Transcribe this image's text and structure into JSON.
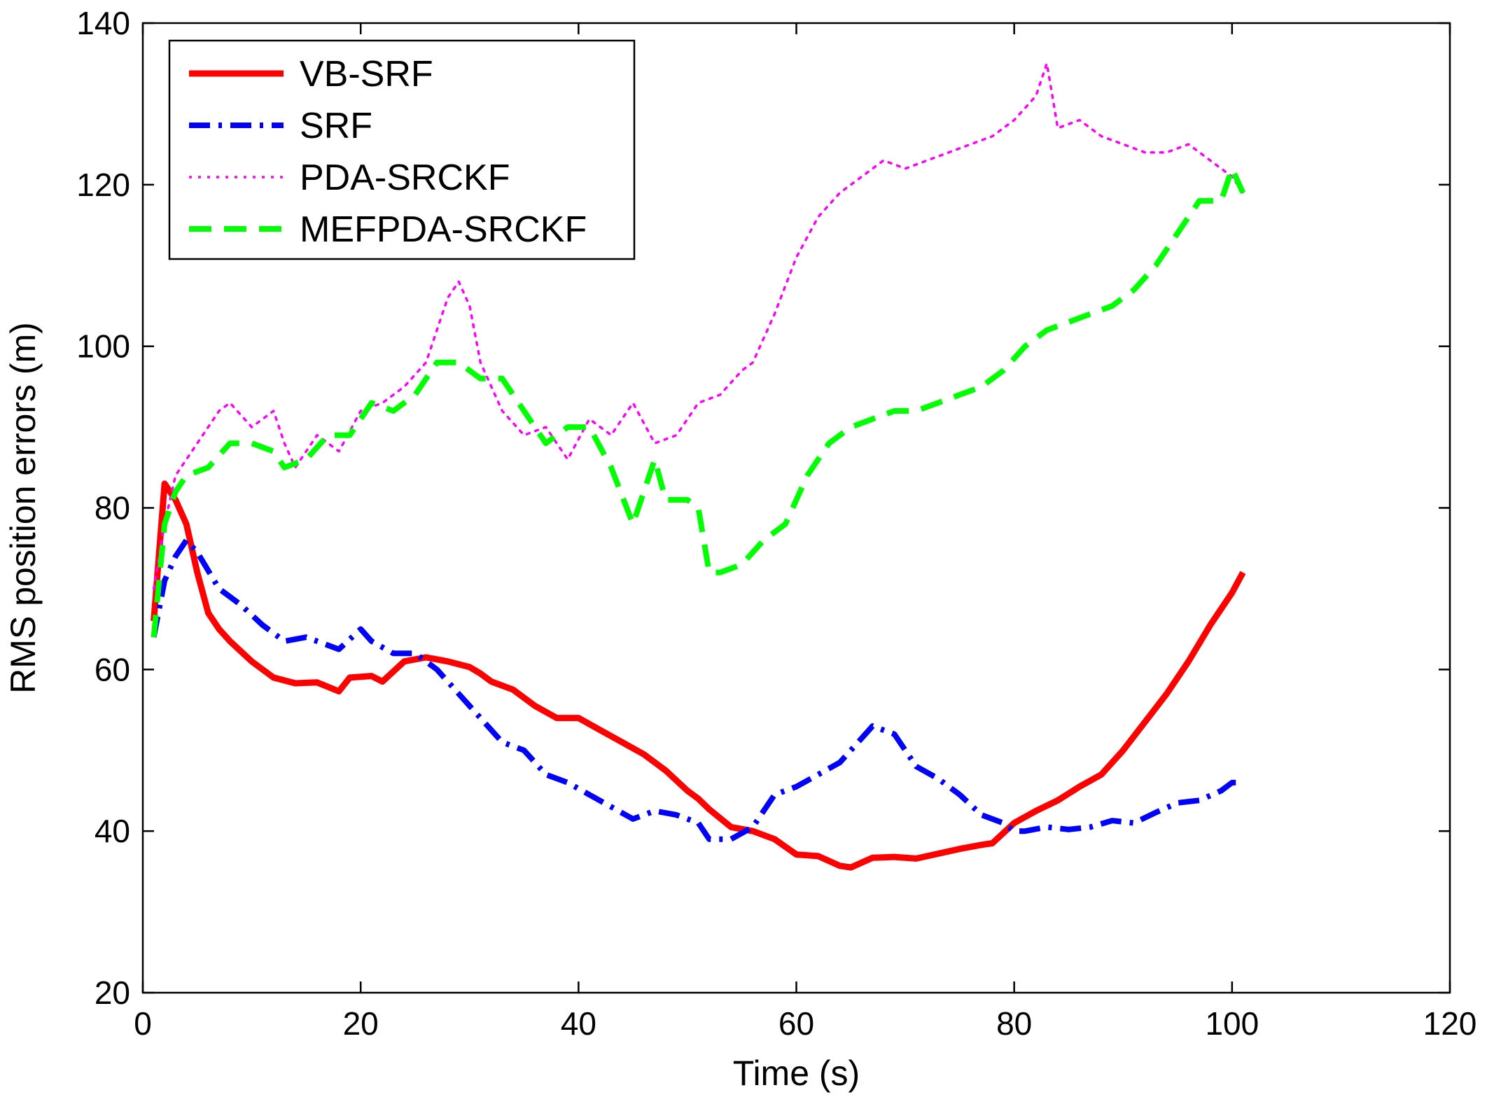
{
  "chart_data": {
    "type": "line",
    "title": "",
    "xlabel": "Time (s)",
    "ylabel": "RMS position errors (m)",
    "xlim": [
      0,
      120
    ],
    "ylim": [
      20,
      140
    ],
    "xticks": [
      0,
      20,
      40,
      60,
      80,
      100,
      120
    ],
    "yticks": [
      20,
      40,
      60,
      80,
      100,
      120,
      140
    ],
    "grid": false,
    "legend_position": "top-left",
    "series": [
      {
        "name": "VB-SRF",
        "color": "#ff0000",
        "style": "solid",
        "x": [
          1,
          2,
          3,
          4,
          5,
          6,
          7,
          8,
          10,
          12,
          14,
          16,
          18,
          19,
          21,
          22,
          24,
          26,
          28,
          30,
          31,
          32,
          34,
          36,
          38,
          40,
          42,
          44,
          46,
          48,
          50,
          51,
          52,
          54,
          56,
          58,
          60,
          62,
          64,
          65,
          67,
          69,
          71,
          73,
          75,
          77,
          78,
          80,
          82,
          84,
          86,
          88,
          90,
          92,
          94,
          96,
          98,
          100,
          101
        ],
        "values": [
          66,
          83,
          81,
          78,
          72,
          67,
          65,
          63.5,
          61,
          59,
          58.3,
          58.4,
          57.3,
          59,
          59.2,
          58.5,
          61,
          61.5,
          61,
          60.3,
          59.5,
          58.5,
          57.5,
          55.5,
          54,
          54,
          52.5,
          51,
          49.5,
          47.5,
          45,
          44,
          42.7,
          40.5,
          40,
          39,
          37.1,
          36.9,
          35.7,
          35.5,
          36.7,
          36.8,
          36.6,
          37.2,
          37.8,
          38.3,
          38.5,
          41,
          42.5,
          43.8,
          45.5,
          47,
          50,
          53.5,
          57,
          61,
          65.5,
          69.5,
          72
        ]
      },
      {
        "name": "SRF",
        "color": "#0000ff",
        "style": "dashdot",
        "x": [
          1,
          2,
          3,
          4,
          5,
          7,
          9,
          11,
          13,
          15,
          17,
          18,
          20,
          21,
          23,
          25,
          27,
          29,
          31,
          33,
          35,
          37,
          39,
          41,
          43,
          45,
          47,
          49,
          51,
          52,
          54,
          56,
          58,
          60,
          62,
          64,
          66,
          67,
          69,
          71,
          73,
          75,
          77,
          79,
          80,
          81,
          83,
          85,
          87,
          89,
          91,
          93,
          95,
          97,
          99,
          100,
          101
        ],
        "values": [
          64,
          71,
          74,
          76,
          74.5,
          70,
          68,
          65.5,
          63.5,
          64,
          63,
          62.5,
          65,
          63.5,
          62,
          62,
          60,
          57,
          54,
          51,
          50,
          47,
          46,
          44.5,
          43,
          41.5,
          42.5,
          42,
          41,
          39,
          39,
          40.5,
          44.5,
          45.5,
          47,
          48.5,
          51.5,
          53,
          52,
          48,
          46.5,
          44.5,
          42,
          41,
          40,
          40,
          40.5,
          40.2,
          40.5,
          41.3,
          41,
          42.3,
          43.5,
          43.8,
          45,
          46,
          46
        ]
      },
      {
        "name": "PDA-SRCKF",
        "color": "#ff00ff",
        "style": "dotted",
        "x": [
          1,
          2,
          3,
          5,
          7,
          8,
          10,
          12,
          13,
          14,
          16,
          18,
          20,
          22,
          24,
          26,
          28,
          29,
          30,
          31,
          33,
          35,
          37,
          39,
          41,
          43,
          45,
          47,
          49,
          51,
          53,
          55,
          56,
          58,
          60,
          62,
          64,
          66,
          68,
          70,
          72,
          74,
          76,
          78,
          80,
          82,
          83,
          84,
          86,
          88,
          90,
          92,
          94,
          96,
          98,
          100,
          101
        ],
        "values": [
          70,
          78,
          84,
          88,
          92,
          93,
          90,
          92,
          88,
          85,
          89,
          87,
          92,
          93,
          95,
          98,
          106,
          108,
          105,
          98,
          92,
          89,
          90,
          86,
          91,
          89,
          93,
          88,
          89,
          93,
          94,
          97,
          98,
          104,
          111,
          116,
          119,
          121,
          123,
          122,
          123,
          124,
          125,
          126,
          128,
          131,
          135,
          127,
          128,
          126,
          125,
          124,
          124,
          125,
          123,
          121,
          119
        ]
      },
      {
        "name": "MEFPDA-SRCKF",
        "color": "#00ff00",
        "style": "dashed",
        "x": [
          1,
          2,
          3,
          4,
          6,
          8,
          10,
          12,
          13,
          15,
          17,
          19,
          21,
          23,
          25,
          27,
          29,
          31,
          33,
          35,
          37,
          39,
          41,
          43,
          45,
          46,
          47,
          48,
          50,
          51,
          52,
          53,
          55,
          57,
          59,
          61,
          63,
          65,
          67,
          69,
          71,
          73,
          75,
          77,
          79,
          81,
          83,
          85,
          87,
          89,
          91,
          93,
          95,
          97,
          99,
          100,
          101
        ],
        "values": [
          64,
          78,
          82,
          84,
          85,
          88,
          88,
          87,
          85,
          86,
          89,
          89,
          93,
          92,
          94,
          98,
          98,
          96,
          96,
          92,
          88,
          90,
          90,
          85,
          78,
          82,
          86,
          81,
          81,
          80,
          72,
          72,
          73,
          76,
          78,
          84,
          88,
          90,
          91,
          92,
          92,
          93,
          94,
          95,
          97,
          100,
          102,
          103,
          104,
          105,
          107,
          110,
          114,
          118,
          118,
          122,
          119
        ]
      }
    ]
  }
}
